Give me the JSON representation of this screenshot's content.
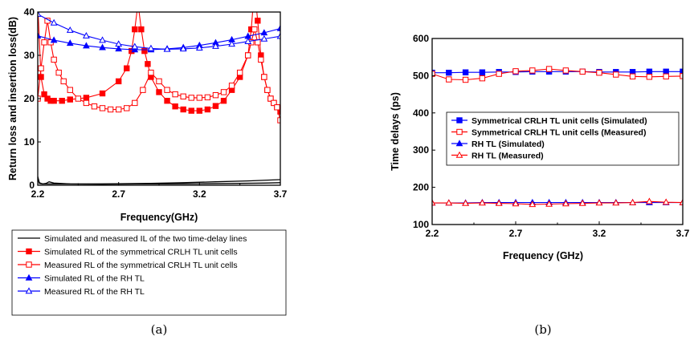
{
  "chart_data": [
    {
      "panel": "(a)",
      "type": "line",
      "xlabel": "Frequency(GHz)",
      "ylabel": "Return loss and insertion loss(dB)",
      "xlim": [
        2.2,
        3.7
      ],
      "ylim": [
        40,
        0
      ],
      "y_inverted": true,
      "x_ticks": [
        "2.2",
        "2.7",
        "3.2",
        "3.7"
      ],
      "y_ticks": [
        "0",
        "10",
        "20",
        "30",
        "40"
      ],
      "legend_position": "bottom-outside",
      "series": [
        {
          "name": "Simulated and measured IL of the two time-delay lines",
          "color": "#000000",
          "marker": "none",
          "x": [
            2.2,
            2.21,
            2.23,
            2.25,
            2.27,
            2.3,
            2.4,
            2.6,
            2.8,
            3.0,
            3.2,
            3.4,
            3.6,
            3.7
          ],
          "y": [
            2.0,
            0.6,
            0.3,
            0.4,
            0.8,
            0.5,
            0.3,
            0.25,
            0.3,
            0.3,
            0.35,
            0.4,
            0.5,
            0.6
          ]
        },
        {
          "name": "Simulated and measured IL of the two time-delay lines (second line)",
          "color": "#000000",
          "marker": "none",
          "x": [
            2.2,
            2.21,
            2.23,
            2.3,
            2.5,
            2.7,
            2.9,
            3.1,
            3.3,
            3.5,
            3.7
          ],
          "y": [
            1.5,
            0.4,
            0.3,
            0.3,
            0.3,
            0.35,
            0.45,
            0.6,
            0.8,
            1.0,
            1.3
          ]
        },
        {
          "name": "Simulated RL of the symmetrical CRLH TL unit cells",
          "color": "#ff0000",
          "marker": "square-filled",
          "x": [
            2.2,
            2.22,
            2.24,
            2.26,
            2.28,
            2.3,
            2.35,
            2.4,
            2.5,
            2.6,
            2.7,
            2.75,
            2.78,
            2.8,
            2.82,
            2.84,
            2.86,
            2.88,
            2.9,
            2.95,
            3.0,
            3.05,
            3.1,
            3.15,
            3.2,
            3.25,
            3.3,
            3.35,
            3.4,
            3.45,
            3.5,
            3.52,
            3.54,
            3.56,
            3.58,
            3.6,
            3.62,
            3.64,
            3.66,
            3.68,
            3.7
          ],
          "y": [
            42,
            25,
            21,
            20,
            19.5,
            19.5,
            19.5,
            19.8,
            20.2,
            21.2,
            24,
            27,
            31,
            36,
            42,
            36,
            31,
            28,
            25,
            21.5,
            19.5,
            18.2,
            17.5,
            17.2,
            17.2,
            17.5,
            18.3,
            19.5,
            22,
            25,
            30,
            36,
            45.5,
            38,
            30,
            25,
            22,
            20,
            19,
            18,
            17
          ]
        },
        {
          "name": "Measured RL of the symmetrical CRLH TL unit cells",
          "color": "#ff0000",
          "marker": "square-open",
          "x": [
            2.2,
            2.22,
            2.24,
            2.26,
            2.28,
            2.3,
            2.33,
            2.36,
            2.4,
            2.45,
            2.5,
            2.55,
            2.6,
            2.65,
            2.7,
            2.75,
            2.8,
            2.85,
            2.9,
            2.95,
            3.0,
            3.05,
            3.1,
            3.15,
            3.2,
            3.25,
            3.3,
            3.35,
            3.4,
            3.45,
            3.5,
            3.52,
            3.54,
            3.56,
            3.58,
            3.6,
            3.62,
            3.64,
            3.66,
            3.68,
            3.7
          ],
          "y": [
            20,
            27,
            33,
            38,
            33,
            29,
            26,
            24,
            22,
            20,
            19,
            18.2,
            17.8,
            17.5,
            17.5,
            17.8,
            19,
            22,
            26,
            24,
            22,
            21,
            20.5,
            20.2,
            20.2,
            20.3,
            20.8,
            21.5,
            23,
            26,
            30,
            33,
            36,
            33,
            29,
            25,
            22,
            20,
            19,
            18,
            15
          ]
        },
        {
          "name": "Simulated RL of the RH TL",
          "color": "#0000ff",
          "marker": "triangle-filled",
          "x": [
            2.2,
            2.3,
            2.4,
            2.5,
            2.6,
            2.7,
            2.8,
            2.9,
            3.0,
            3.1,
            3.2,
            3.3,
            3.4,
            3.5,
            3.6,
            3.7
          ],
          "y": [
            34.5,
            33.5,
            32.8,
            32.2,
            31.8,
            31.5,
            31.3,
            31.3,
            31.5,
            31.8,
            32.3,
            32.9,
            33.6,
            34.4,
            35.2,
            36.2
          ]
        },
        {
          "name": "Measured RL of the RH TL",
          "color": "#0000ff",
          "marker": "triangle-open",
          "x": [
            2.2,
            2.3,
            2.4,
            2.5,
            2.6,
            2.7,
            2.8,
            2.9,
            3.0,
            3.1,
            3.2,
            3.3,
            3.4,
            3.5,
            3.6,
            3.7
          ],
          "y": [
            39.5,
            37.5,
            35.8,
            34.5,
            33.5,
            32.6,
            32.0,
            31.6,
            31.4,
            31.5,
            31.7,
            32.1,
            32.6,
            33.2,
            33.8,
            34.4
          ]
        }
      ]
    },
    {
      "panel": "(b)",
      "type": "line",
      "xlabel": "Frequency (GHz)",
      "ylabel": "Time delays (ps)",
      "xlim": [
        2.2,
        3.7
      ],
      "ylim": [
        100,
        600
      ],
      "x_ticks": [
        "2.2",
        "2.7",
        "3.2",
        "3.7"
      ],
      "y_ticks": [
        "100",
        "200",
        "300",
        "400",
        "500",
        "600"
      ],
      "legend_position": "center",
      "series": [
        {
          "name": "Symmetrical CRLH TL unit cells (Simulated)",
          "color": "#0000ff",
          "marker": "square-filled",
          "x": [
            2.2,
            2.3,
            2.4,
            2.5,
            2.6,
            2.7,
            2.8,
            2.9,
            3.0,
            3.1,
            3.2,
            3.3,
            3.4,
            3.5,
            3.6,
            3.7
          ],
          "y": [
            508,
            508,
            509,
            509,
            510,
            510,
            511,
            511,
            511,
            511,
            510,
            510,
            510,
            511,
            511,
            511
          ]
        },
        {
          "name": "Symmetrical CRLH TL unit cells (Measured)",
          "color": "#ff0000",
          "marker": "square-open",
          "x": [
            2.2,
            2.3,
            2.4,
            2.5,
            2.6,
            2.7,
            2.8,
            2.9,
            3.0,
            3.1,
            3.2,
            3.3,
            3.4,
            3.5,
            3.6,
            3.7
          ],
          "y": [
            505,
            490,
            489,
            493,
            505,
            512,
            514,
            518,
            514,
            511,
            508,
            503,
            498,
            497,
            498,
            499
          ]
        },
        {
          "name": "RH TL (Simulated)",
          "color": "#0000ff",
          "marker": "triangle-filled",
          "x": [
            2.2,
            2.3,
            2.4,
            2.5,
            2.6,
            2.7,
            2.8,
            2.9,
            3.0,
            3.1,
            3.2,
            3.3,
            3.4,
            3.5,
            3.6,
            3.7
          ],
          "y": [
            158,
            158,
            158,
            159,
            159,
            159,
            159,
            159,
            159,
            159,
            159,
            159,
            159,
            159,
            159,
            159
          ]
        },
        {
          "name": "RH TL (Measured)",
          "color": "#ff0000",
          "marker": "triangle-open",
          "x": [
            2.2,
            2.3,
            2.4,
            2.5,
            2.6,
            2.7,
            2.8,
            2.9,
            3.0,
            3.1,
            3.2,
            3.3,
            3.4,
            3.5,
            3.6,
            3.7
          ],
          "y": [
            158,
            158,
            157,
            158,
            157,
            156,
            154,
            155,
            156,
            157,
            158,
            158,
            159,
            162,
            160,
            159
          ]
        }
      ]
    }
  ],
  "captions": [
    "(a)",
    "(b)"
  ]
}
